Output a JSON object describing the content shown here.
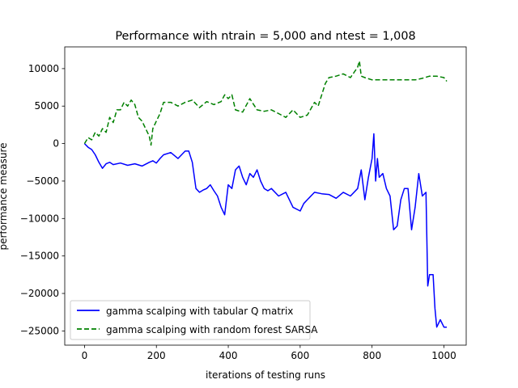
{
  "chart_data": {
    "type": "line",
    "title": "Performance with ntrain = 5,000 and ntest = 1,008",
    "xlabel": "iterations of testing runs",
    "ylabel": "performance measure",
    "xlim": [
      -55,
      1062
    ],
    "ylim": [
      -26900,
      12900
    ],
    "xticks": [
      0,
      200,
      400,
      600,
      800,
      1000
    ],
    "yticks": [
      10000,
      5000,
      0,
      -5000,
      -10000,
      -15000,
      -20000,
      -25000
    ],
    "xtick_labels": [
      "0",
      "200",
      "400",
      "600",
      "800",
      "1000"
    ],
    "ytick_labels": [
      "10000",
      "5000",
      "0",
      "−5000",
      "−10000",
      "−15000",
      "−20000",
      "−25000"
    ],
    "grid": false,
    "legend_position": "lower-left",
    "series": [
      {
        "name": "gamma scalping with tabular Q matrix",
        "color": "#0000ff",
        "style": "solid",
        "x": [
          0,
          10,
          20,
          30,
          40,
          50,
          60,
          70,
          80,
          100,
          120,
          140,
          160,
          180,
          190,
          200,
          210,
          220,
          240,
          260,
          280,
          290,
          300,
          310,
          320,
          330,
          340,
          350,
          360,
          370,
          380,
          390,
          400,
          410,
          420,
          430,
          440,
          450,
          460,
          470,
          480,
          490,
          500,
          510,
          520,
          540,
          560,
          580,
          600,
          610,
          620,
          640,
          660,
          680,
          700,
          720,
          740,
          760,
          770,
          780,
          790,
          800,
          805,
          810,
          815,
          820,
          830,
          840,
          850,
          860,
          870,
          880,
          890,
          900,
          910,
          920,
          930,
          940,
          950,
          955,
          960,
          970,
          975,
          980,
          990,
          1000,
          1008
        ],
        "y": [
          0,
          -500,
          -800,
          -1500,
          -2500,
          -3300,
          -2700,
          -2500,
          -2800,
          -2600,
          -2900,
          -2700,
          -3000,
          -2500,
          -2300,
          -2600,
          -2000,
          -1500,
          -1200,
          -2000,
          -1000,
          -1000,
          -2500,
          -6000,
          -6500,
          -6200,
          -6000,
          -5500,
          -6300,
          -7000,
          -8500,
          -9500,
          -5500,
          -6000,
          -3500,
          -3000,
          -4500,
          -5500,
          -4000,
          -4500,
          -3500,
          -5000,
          -6000,
          -6300,
          -6000,
          -7000,
          -6500,
          -8500,
          -9000,
          -8000,
          -7500,
          -6500,
          -6700,
          -6800,
          -7300,
          -6500,
          -7000,
          -6000,
          -3500,
          -7500,
          -4500,
          -2000,
          1300,
          -5000,
          -2000,
          -4500,
          -4000,
          -6000,
          -7000,
          -11500,
          -11000,
          -7500,
          -6000,
          -6000,
          -11500,
          -8500,
          -4000,
          -7000,
          -6500,
          -19000,
          -17500,
          -17500,
          -22000,
          -24500,
          -23500,
          -24500,
          -24500
        ]
      },
      {
        "name": "gamma scalping with random forest SARSA",
        "color": "#008000",
        "style": "dashed",
        "x": [
          0,
          10,
          20,
          30,
          40,
          50,
          60,
          70,
          80,
          90,
          100,
          110,
          120,
          130,
          140,
          150,
          160,
          170,
          180,
          185,
          190,
          200,
          210,
          220,
          240,
          260,
          280,
          300,
          320,
          340,
          360,
          380,
          390,
          400,
          410,
          420,
          440,
          460,
          480,
          500,
          520,
          540,
          560,
          580,
          600,
          620,
          640,
          650,
          660,
          670,
          680,
          700,
          720,
          740,
          750,
          760,
          765,
          770,
          780,
          800,
          840,
          880,
          920,
          940,
          960,
          980,
          1000,
          1008
        ],
        "y": [
          0,
          800,
          500,
          1500,
          1000,
          2000,
          1500,
          3500,
          2800,
          4500,
          4500,
          5500,
          5000,
          5800,
          5200,
          3500,
          3000,
          2000,
          1000,
          -200,
          2000,
          3000,
          4000,
          5500,
          5500,
          5000,
          5500,
          5800,
          4800,
          5600,
          5200,
          5600,
          6500,
          6000,
          6500,
          4500,
          4200,
          6000,
          4500,
          4300,
          4500,
          4000,
          3500,
          4500,
          3500,
          3800,
          5500,
          5000,
          6500,
          8000,
          8800,
          9000,
          9300,
          8800,
          9500,
          10200,
          11000,
          9000,
          8800,
          8500,
          8500,
          8500,
          8500,
          8700,
          9000,
          9000,
          8800,
          8300
        ]
      }
    ]
  }
}
